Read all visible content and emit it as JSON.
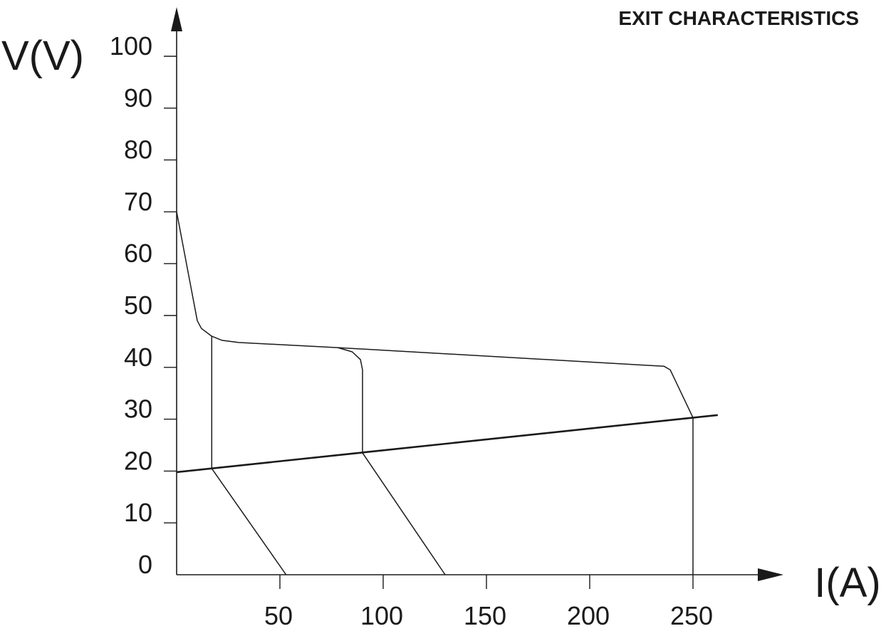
{
  "chart_data": {
    "type": "line",
    "title": "EXIT CHARACTERISTICS",
    "xlabel": "I(A)",
    "ylabel": "V(V)",
    "xlim": [
      0,
      262
    ],
    "ylim": [
      0,
      100
    ],
    "x_ticks": [
      50,
      100,
      150,
      200,
      250
    ],
    "x_tick_labels": [
      "50",
      "100",
      "150",
      "200",
      "250"
    ],
    "y_ticks": [
      0,
      10,
      20,
      30,
      40,
      50,
      60,
      70,
      80,
      90,
      100
    ],
    "y_tick_labels": [
      "0",
      "10",
      "20",
      "30",
      "40",
      "50",
      "60",
      "70",
      "80",
      "90",
      "100"
    ],
    "grid": false,
    "series": [
      {
        "values": [
          [
            0,
            70
          ],
          [
            10,
            49
          ],
          [
            12,
            47.5
          ],
          [
            17,
            46
          ],
          [
            22,
            45.2
          ],
          [
            30,
            44.8
          ],
          [
            78,
            43.8
          ],
          [
            85,
            43
          ],
          [
            89,
            41.5
          ],
          [
            90,
            39.5
          ],
          [
            90,
            23.5
          ],
          [
            130,
            0
          ]
        ]
      },
      {
        "values": [
          [
            78,
            43.8
          ],
          [
            236,
            40.2
          ],
          [
            239,
            39.5
          ],
          [
            250,
            30.3
          ],
          [
            250,
            0
          ]
        ]
      },
      {
        "values": [
          [
            17,
            46
          ],
          [
            17,
            20.5
          ],
          [
            53,
            0
          ]
        ]
      },
      {
        "values": [
          [
            0,
            19.8
          ],
          [
            262,
            30.8
          ]
        ],
        "emphasis": "load-line"
      }
    ]
  }
}
